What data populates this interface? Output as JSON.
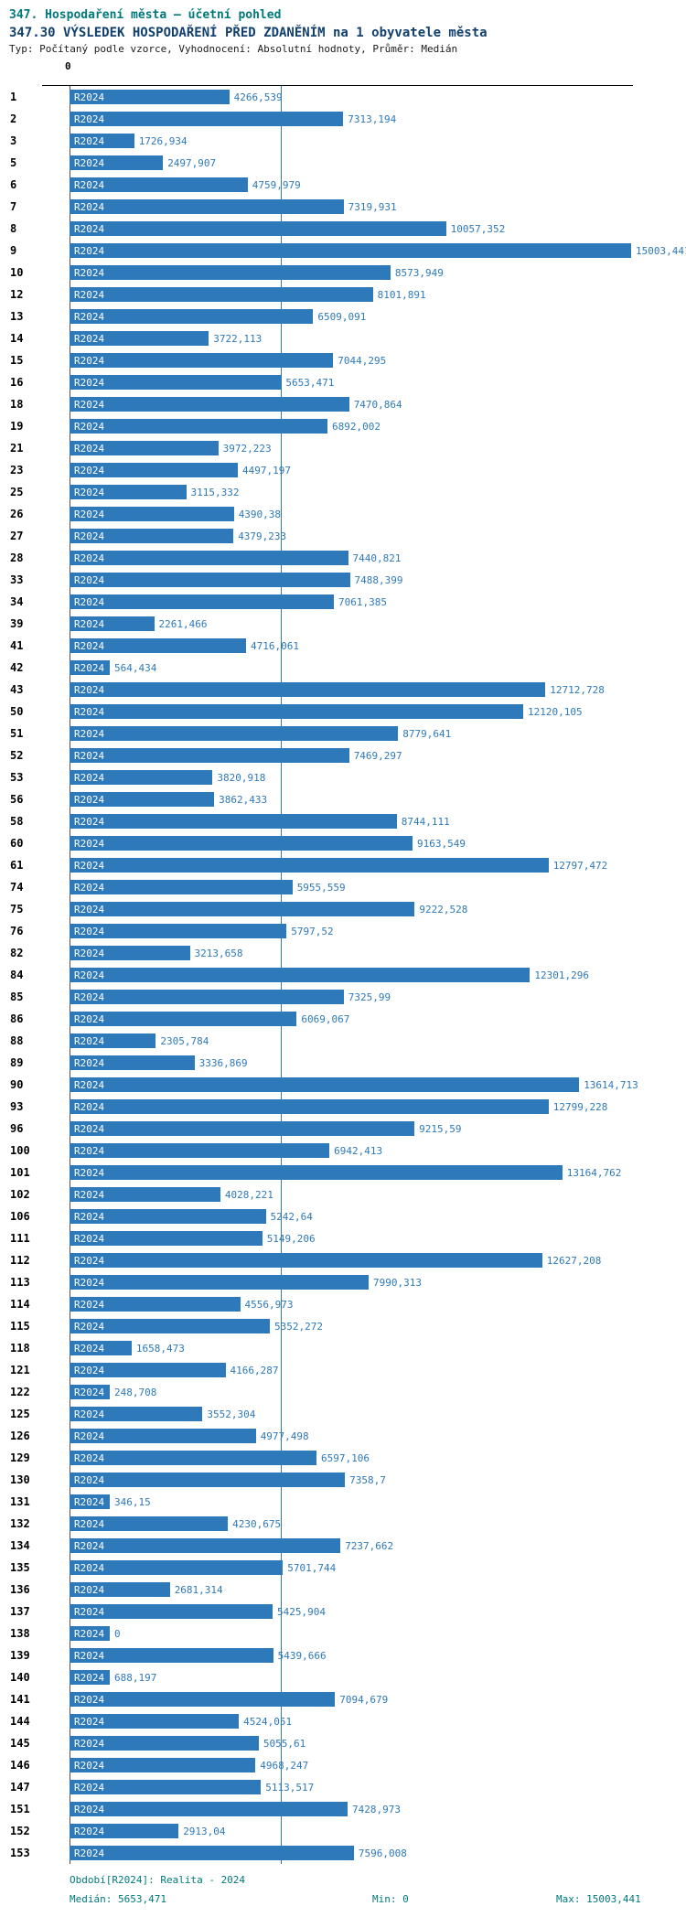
{
  "header": {
    "title_line1": "347. Hospodaření města – účetní pohled",
    "title_line2": "347.30 VÝSLEDEK HOSPODAŘENÍ PŘED ZDANĚNÍM na 1 obyvatele města",
    "subtitle": "Typ: Počítaný podle vzorce, Vyhodnocení: Absolutní hodnoty, Průměr: Medián"
  },
  "axis": {
    "zero_label": "0"
  },
  "footer": {
    "period": "Období[R2024]: Realita - 2024",
    "median": "Medián: 5653,471",
    "min": "Min: 0",
    "max": "Max: 15003,441"
  },
  "chart_data": {
    "type": "bar",
    "orientation": "horizontal",
    "title": "347.30 VÝSLEDEK HOSPODAŘENÍ PŘED ZDANĚNÍM na 1 obyvatele města",
    "series_label": "R2024",
    "value_min": 0,
    "value_max": 15003.441,
    "median_value": 5653.471,
    "bar_color": "#2e79ba",
    "legend_position": "none",
    "rows": [
      {
        "rank": "1",
        "value": "4266,539"
      },
      {
        "rank": "2",
        "value": "7313,194"
      },
      {
        "rank": "3",
        "value": "1726,934"
      },
      {
        "rank": "5",
        "value": "2497,907"
      },
      {
        "rank": "6",
        "value": "4759,979"
      },
      {
        "rank": "7",
        "value": "7319,931"
      },
      {
        "rank": "8",
        "value": "10057,352"
      },
      {
        "rank": "9",
        "value": "15003,441"
      },
      {
        "rank": "10",
        "value": "8573,949"
      },
      {
        "rank": "12",
        "value": "8101,891"
      },
      {
        "rank": "13",
        "value": "6509,091"
      },
      {
        "rank": "14",
        "value": "3722,113"
      },
      {
        "rank": "15",
        "value": "7044,295"
      },
      {
        "rank": "16",
        "value": "5653,471"
      },
      {
        "rank": "18",
        "value": "7470,864"
      },
      {
        "rank": "19",
        "value": "6892,002"
      },
      {
        "rank": "21",
        "value": "3972,223"
      },
      {
        "rank": "23",
        "value": "4497,197"
      },
      {
        "rank": "25",
        "value": "3115,332"
      },
      {
        "rank": "26",
        "value": "4390,38"
      },
      {
        "rank": "27",
        "value": "4379,233"
      },
      {
        "rank": "28",
        "value": "7440,821"
      },
      {
        "rank": "33",
        "value": "7488,399"
      },
      {
        "rank": "34",
        "value": "7061,385"
      },
      {
        "rank": "39",
        "value": "2261,466"
      },
      {
        "rank": "41",
        "value": "4716,061"
      },
      {
        "rank": "42",
        "value": "564,434"
      },
      {
        "rank": "43",
        "value": "12712,728"
      },
      {
        "rank": "50",
        "value": "12120,105"
      },
      {
        "rank": "51",
        "value": "8779,641"
      },
      {
        "rank": "52",
        "value": "7469,297"
      },
      {
        "rank": "53",
        "value": "3820,918"
      },
      {
        "rank": "56",
        "value": "3862,433"
      },
      {
        "rank": "58",
        "value": "8744,111"
      },
      {
        "rank": "60",
        "value": "9163,549"
      },
      {
        "rank": "61",
        "value": "12797,472"
      },
      {
        "rank": "74",
        "value": "5955,559"
      },
      {
        "rank": "75",
        "value": "9222,528"
      },
      {
        "rank": "76",
        "value": "5797,52"
      },
      {
        "rank": "82",
        "value": "3213,658"
      },
      {
        "rank": "84",
        "value": "12301,296"
      },
      {
        "rank": "85",
        "value": "7325,99"
      },
      {
        "rank": "86",
        "value": "6069,067"
      },
      {
        "rank": "88",
        "value": "2305,784"
      },
      {
        "rank": "89",
        "value": "3336,869"
      },
      {
        "rank": "90",
        "value": "13614,713"
      },
      {
        "rank": "93",
        "value": "12799,228"
      },
      {
        "rank": "96",
        "value": "9215,59"
      },
      {
        "rank": "100",
        "value": "6942,413"
      },
      {
        "rank": "101",
        "value": "13164,762"
      },
      {
        "rank": "102",
        "value": "4028,221"
      },
      {
        "rank": "106",
        "value": "5242,64"
      },
      {
        "rank": "111",
        "value": "5149,206"
      },
      {
        "rank": "112",
        "value": "12627,208"
      },
      {
        "rank": "113",
        "value": "7990,313"
      },
      {
        "rank": "114",
        "value": "4556,973"
      },
      {
        "rank": "115",
        "value": "5352,272"
      },
      {
        "rank": "118",
        "value": "1658,473"
      },
      {
        "rank": "121",
        "value": "4166,287"
      },
      {
        "rank": "122",
        "value": "248,708"
      },
      {
        "rank": "125",
        "value": "3552,304"
      },
      {
        "rank": "126",
        "value": "4977,498"
      },
      {
        "rank": "129",
        "value": "6597,106"
      },
      {
        "rank": "130",
        "value": "7358,7"
      },
      {
        "rank": "131",
        "value": "346,15"
      },
      {
        "rank": "132",
        "value": "4230,675"
      },
      {
        "rank": "134",
        "value": "7237,662"
      },
      {
        "rank": "135",
        "value": "5701,744"
      },
      {
        "rank": "136",
        "value": "2681,314"
      },
      {
        "rank": "137",
        "value": "5425,904"
      },
      {
        "rank": "138",
        "value": "0"
      },
      {
        "rank": "139",
        "value": "5439,666"
      },
      {
        "rank": "140",
        "value": "688,197"
      },
      {
        "rank": "141",
        "value": "7094,679"
      },
      {
        "rank": "144",
        "value": "4524,051"
      },
      {
        "rank": "145",
        "value": "5055,61"
      },
      {
        "rank": "146",
        "value": "4968,247"
      },
      {
        "rank": "147",
        "value": "5113,517"
      },
      {
        "rank": "151",
        "value": "7428,973"
      },
      {
        "rank": "152",
        "value": "2913,04"
      },
      {
        "rank": "153",
        "value": "7596,008"
      }
    ]
  }
}
